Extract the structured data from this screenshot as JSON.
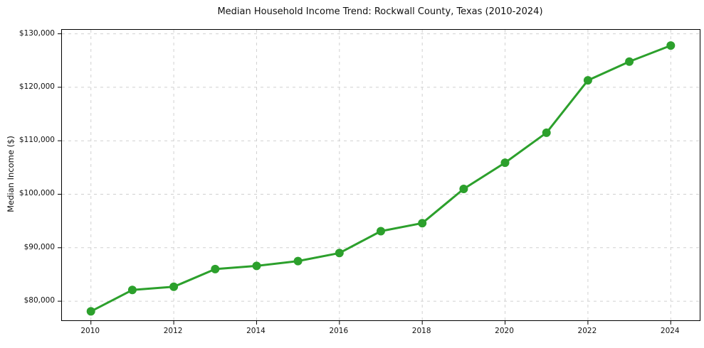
{
  "chart_data": {
    "type": "line",
    "title": "Median Household Income Trend: Rockwall County, Texas (2010-2024)",
    "xlabel": "",
    "ylabel": "Median Income ($)",
    "x": [
      2010,
      2011,
      2012,
      2013,
      2014,
      2015,
      2016,
      2017,
      2018,
      2019,
      2020,
      2021,
      2022,
      2023,
      2024
    ],
    "series": [
      {
        "name": "Median Household Income",
        "values": [
          78100,
          82100,
          82700,
          86000,
          86600,
          87500,
          89000,
          93100,
          94600,
          101000,
          105900,
          111500,
          121300,
          124800,
          127800
        ]
      }
    ],
    "x_ticks": [
      2010,
      2012,
      2014,
      2016,
      2018,
      2020,
      2022,
      2024
    ],
    "x_tick_labels": [
      "2010",
      "2012",
      "2014",
      "2016",
      "2018",
      "2020",
      "2022",
      "2024"
    ],
    "y_ticks": [
      80000,
      90000,
      100000,
      110000,
      120000,
      130000
    ],
    "y_tick_labels": [
      "$80,000",
      "$90,000",
      "$100,000",
      "$110,000",
      "$120,000",
      "$130,000"
    ],
    "xlim": [
      2009.3,
      2024.7
    ],
    "ylim": [
      76430,
      130740
    ],
    "grid": true,
    "legend": "none",
    "line_color": "#2ca02c",
    "marker": "circle",
    "marker_size": 6,
    "line_width": 3,
    "grid_color": "#cccccc",
    "axis_color": "#000000",
    "text_color": "#111111"
  }
}
